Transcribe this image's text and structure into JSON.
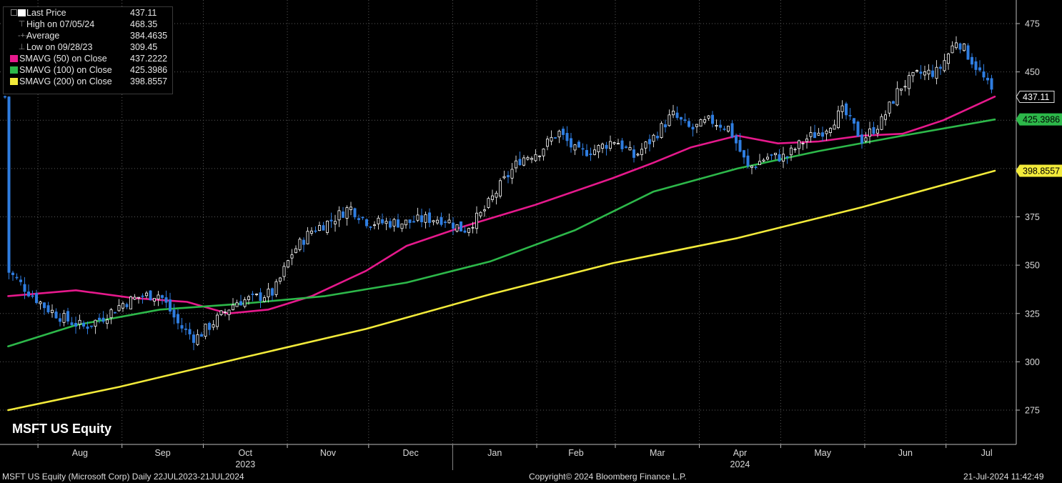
{
  "legend": {
    "items": [
      {
        "label": "Last Price",
        "value": "437.11",
        "icon": "white-square-icon"
      },
      {
        "label": "High on 07/05/24",
        "value": "468.35",
        "icon": "high-marker-icon"
      },
      {
        "label": "Average",
        "value": "384.4635",
        "icon": "average-marker-icon"
      },
      {
        "label": "Low on 09/28/23",
        "value": "309.45",
        "icon": "low-marker-icon"
      },
      {
        "label": "SMAVG (50)  on Close",
        "value": "437.2222",
        "color": "#e6198c"
      },
      {
        "label": "SMAVG (100)  on Close",
        "value": "425.3986",
        "color": "#2db84a"
      },
      {
        "label": "SMAVG (200)  on Close",
        "value": "398.8557",
        "color": "#f2ea3a"
      }
    ]
  },
  "overlay_title": "MSFT US Equity",
  "footer": {
    "left": "MSFT US Equity (Microsoft Corp)  Daily 22JUL2023-21JUL2024",
    "center": "Copyright© 2024 Bloomberg Finance L.P.",
    "right": "21-Jul-2024 11:42:49"
  },
  "colors": {
    "background": "#000000",
    "up_candle": "#ffffff",
    "down_candle": "#2f7de0",
    "grid": "#5a5a5a"
  },
  "chart_data": {
    "type": "candlestick",
    "x_labels": [
      "Aug",
      "Sep",
      "Oct",
      "Nov",
      "Dec",
      "Jan",
      "Feb",
      "Mar",
      "Apr",
      "May",
      "Jun",
      "Jul"
    ],
    "year_labels": [
      {
        "label": "2023",
        "month": "Oct"
      },
      {
        "label": "2024",
        "month": "Apr"
      }
    ],
    "y_ticks": [
      275,
      300,
      325,
      350,
      375,
      400,
      425,
      450,
      475
    ],
    "ylim": [
      258,
      482
    ],
    "axis_position": "right",
    "grid": true,
    "price_tags": [
      {
        "value": 437.11,
        "label": "437.11",
        "color": "#ffffff"
      },
      {
        "value": 425.3986,
        "label": "425.3986",
        "color": "#2db84a"
      },
      {
        "value": 398.8557,
        "label": "398.8557",
        "color": "#f2ea3a"
      }
    ],
    "close_points": [
      {
        "date": "2023-07-21",
        "close": 347
      },
      {
        "date": "2023-07-28",
        "close": 337
      },
      {
        "date": "2023-08-04",
        "close": 328
      },
      {
        "date": "2023-08-11",
        "close": 322
      },
      {
        "date": "2023-08-18",
        "close": 318
      },
      {
        "date": "2023-08-25",
        "close": 323
      },
      {
        "date": "2023-09-01",
        "close": 330
      },
      {
        "date": "2023-09-08",
        "close": 334
      },
      {
        "date": "2023-09-15",
        "close": 335
      },
      {
        "date": "2023-09-22",
        "close": 319
      },
      {
        "date": "2023-09-28",
        "close": 312
      },
      {
        "date": "2023-10-06",
        "close": 322
      },
      {
        "date": "2023-10-13",
        "close": 331
      },
      {
        "date": "2023-10-20",
        "close": 333
      },
      {
        "date": "2023-10-27",
        "close": 336
      },
      {
        "date": "2023-11-03",
        "close": 357
      },
      {
        "date": "2023-11-10",
        "close": 368
      },
      {
        "date": "2023-11-17",
        "close": 373
      },
      {
        "date": "2023-11-24",
        "close": 380
      },
      {
        "date": "2023-12-01",
        "close": 372
      },
      {
        "date": "2023-12-08",
        "close": 372
      },
      {
        "date": "2023-12-15",
        "close": 372
      },
      {
        "date": "2023-12-22",
        "close": 374
      },
      {
        "date": "2023-12-29",
        "close": 374
      },
      {
        "date": "2024-01-05",
        "close": 368
      },
      {
        "date": "2024-01-12",
        "close": 377
      },
      {
        "date": "2024-01-19",
        "close": 392
      },
      {
        "date": "2024-01-26",
        "close": 405
      },
      {
        "date": "2024-02-02",
        "close": 409
      },
      {
        "date": "2024-02-09",
        "close": 419
      },
      {
        "date": "2024-02-16",
        "close": 408
      },
      {
        "date": "2024-02-23",
        "close": 410
      },
      {
        "date": "2024-03-01",
        "close": 415
      },
      {
        "date": "2024-03-08",
        "close": 406
      },
      {
        "date": "2024-03-15",
        "close": 416
      },
      {
        "date": "2024-03-22",
        "close": 428
      },
      {
        "date": "2024-03-29",
        "close": 420
      },
      {
        "date": "2024-04-05",
        "close": 425
      },
      {
        "date": "2024-04-12",
        "close": 421
      },
      {
        "date": "2024-04-19",
        "close": 400
      },
      {
        "date": "2024-04-26",
        "close": 406
      },
      {
        "date": "2024-05-03",
        "close": 406
      },
      {
        "date": "2024-05-10",
        "close": 415
      },
      {
        "date": "2024-05-17",
        "close": 420
      },
      {
        "date": "2024-05-24",
        "close": 430
      },
      {
        "date": "2024-05-31",
        "close": 415
      },
      {
        "date": "2024-06-07",
        "close": 424
      },
      {
        "date": "2024-06-14",
        "close": 442
      },
      {
        "date": "2024-06-21",
        "close": 449
      },
      {
        "date": "2024-06-28",
        "close": 450
      },
      {
        "date": "2024-07-05",
        "close": 467
      },
      {
        "date": "2024-07-12",
        "close": 453
      },
      {
        "date": "2024-07-19",
        "close": 437.11
      }
    ],
    "series": [
      {
        "name": "SMAVG (50)  on Close",
        "color": "#e6198c",
        "points": [
          {
            "date": "2023-07-21",
            "value": 334
          },
          {
            "date": "2023-08-15",
            "value": 337
          },
          {
            "date": "2023-09-05",
            "value": 333
          },
          {
            "date": "2023-09-25",
            "value": 331
          },
          {
            "date": "2023-10-10",
            "value": 325
          },
          {
            "date": "2023-10-25",
            "value": 327
          },
          {
            "date": "2023-11-10",
            "value": 334
          },
          {
            "date": "2023-11-30",
            "value": 347
          },
          {
            "date": "2023-12-15",
            "value": 360
          },
          {
            "date": "2024-01-05",
            "value": 370
          },
          {
            "date": "2024-01-31",
            "value": 381
          },
          {
            "date": "2024-02-29",
            "value": 395
          },
          {
            "date": "2024-03-15",
            "value": 403
          },
          {
            "date": "2024-03-29",
            "value": 411
          },
          {
            "date": "2024-04-15",
            "value": 417
          },
          {
            "date": "2024-04-30",
            "value": 413
          },
          {
            "date": "2024-05-15",
            "value": 414
          },
          {
            "date": "2024-05-31",
            "value": 417
          },
          {
            "date": "2024-06-15",
            "value": 418
          },
          {
            "date": "2024-06-30",
            "value": 425
          },
          {
            "date": "2024-07-19",
            "value": 437.2222
          }
        ]
      },
      {
        "name": "SMAVG (100)  on Close",
        "color": "#2db84a",
        "points": [
          {
            "date": "2023-07-21",
            "value": 308
          },
          {
            "date": "2023-08-15",
            "value": 319
          },
          {
            "date": "2023-09-15",
            "value": 327
          },
          {
            "date": "2023-10-15",
            "value": 330
          },
          {
            "date": "2023-11-15",
            "value": 334
          },
          {
            "date": "2023-12-15",
            "value": 341
          },
          {
            "date": "2024-01-15",
            "value": 352
          },
          {
            "date": "2024-02-15",
            "value": 368
          },
          {
            "date": "2024-03-15",
            "value": 388
          },
          {
            "date": "2024-04-15",
            "value": 400
          },
          {
            "date": "2024-05-15",
            "value": 409
          },
          {
            "date": "2024-06-15",
            "value": 417
          },
          {
            "date": "2024-07-19",
            "value": 425.3986
          }
        ]
      },
      {
        "name": "SMAVG (200)  on Close",
        "color": "#f2ea3a",
        "points": [
          {
            "date": "2023-07-21",
            "value": 275
          },
          {
            "date": "2023-08-31",
            "value": 287
          },
          {
            "date": "2023-10-15",
            "value": 302
          },
          {
            "date": "2023-11-30",
            "value": 317
          },
          {
            "date": "2024-01-15",
            "value": 335
          },
          {
            "date": "2024-02-29",
            "value": 351
          },
          {
            "date": "2024-04-15",
            "value": 364
          },
          {
            "date": "2024-05-31",
            "value": 380
          },
          {
            "date": "2024-07-19",
            "value": 398.8557
          }
        ]
      }
    ]
  }
}
